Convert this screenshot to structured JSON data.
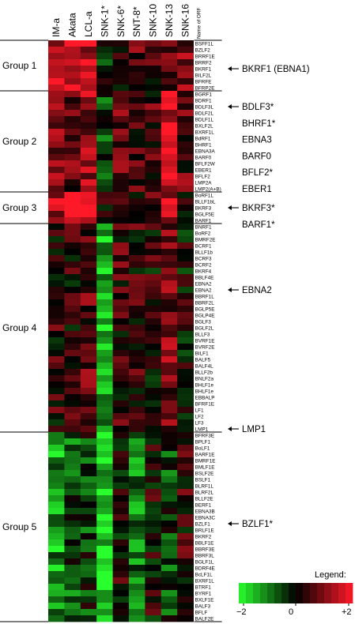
{
  "chart_data": {
    "type": "heatmap",
    "title": "",
    "columns": [
      "IM-a",
      "Akata",
      "LCL-a",
      "SNK-1*",
      "SNK-6*",
      "SNT-8*",
      "SNK-10",
      "SNK-13",
      "SNK-16"
    ],
    "row_header": "Name of ORF",
    "rows": [
      "BSFF1L",
      "BZLF2",
      "BRRF1E",
      "BRRF2",
      "BKRF1",
      "BILF2L",
      "BFRFE",
      "BFRP2E",
      "BGRF1",
      "BDRF1",
      "BDLF3L",
      "BDLF2L",
      "BDLF1L",
      "BXLF2L",
      "BXRF1L",
      "BdRF1",
      "BHRF1",
      "EBNA3A",
      "BARF0",
      "BFLF2W",
      "EBER1",
      "BFLF2",
      "LMP2A",
      "LMP2(A+B)",
      "BoRF1L",
      "BLLF1bL",
      "BKRF3",
      "BGLF5E",
      "BARF1",
      "BNRF1",
      "BoRF2",
      "BMRF2E",
      "BCRF1",
      "BLLF1b",
      "BCRF3",
      "BCRF2",
      "BKRF4",
      "BBLF4E",
      "EBNA2",
      "EBNA2",
      "BBRF1L",
      "BBRF2L",
      "BGLP5E",
      "BGLP4E",
      "BGLF3",
      "BGLF2L",
      "BLLF3",
      "BVRF1E",
      "BVRF2E",
      "BILF1",
      "BALF5",
      "BALF4L",
      "BLLF2b",
      "BNLF2a",
      "BHLF1e",
      "BHLF1e",
      "EBBALP",
      "BFRF1E",
      "LF1",
      "LF2",
      "LF3",
      "LMP1",
      "BFRF3E",
      "BPLF1",
      "BoLF1",
      "BARF1E",
      "BMRF1E",
      "BMLF1E",
      "BSLF2E",
      "BSLF1",
      "BLRF1L",
      "BLRF2L",
      "BLLF2E",
      "BERF1",
      "EBNA3B",
      "EBNA3C",
      "BZLF1",
      "BRLF1E",
      "BKRF2",
      "BBLF1E",
      "BBRF3E",
      "BBRF3L",
      "BGLF1L",
      "BDRF4E",
      "BcLF1L",
      "BXRF1L",
      "BTRF1",
      "BYRF1",
      "BXLF1E",
      "BALF3",
      "BFLF",
      "BALF2E"
    ],
    "groups": [
      {
        "name": "Group 1",
        "start": 0,
        "end": 7
      },
      {
        "name": "Group 2",
        "start": 8,
        "end": 23
      },
      {
        "name": "Group 3",
        "start": 24,
        "end": 28
      },
      {
        "name": "Group 4",
        "start": 29,
        "end": 61
      },
      {
        "name": "Group 5",
        "start": 62,
        "end": 91
      }
    ],
    "annotations": [
      {
        "text": "BKRF1 (EBNA1)",
        "row": 4,
        "arrow": true
      },
      {
        "text": "BDLF3*",
        "row": 10,
        "arrow": true
      },
      {
        "text": "BHRF1*",
        "row": 12.6,
        "arrow": false
      },
      {
        "text": "EBNA3",
        "row": 15.2,
        "arrow": false
      },
      {
        "text": "BARF0",
        "row": 17.8,
        "arrow": false
      },
      {
        "text": "BFLF2*",
        "row": 20.4,
        "arrow": false
      },
      {
        "text": "EBER1",
        "row": 23.0,
        "arrow": false
      },
      {
        "text": "BKRF3*",
        "row": 26,
        "arrow": true
      },
      {
        "text": "BARF1*",
        "row": 28.6,
        "arrow": false
      },
      {
        "text": "EBNA2",
        "row": 39,
        "arrow": true
      },
      {
        "text": "LMP1",
        "row": 61,
        "arrow": true
      },
      {
        "text": "BZLF1*",
        "row": 76,
        "arrow": true
      }
    ],
    "legend": {
      "title": "Legend:",
      "min": -2,
      "mid": 0,
      "max": 2,
      "tick_labels": [
        "−2",
        "0",
        "+2"
      ],
      "low_color": "#33ff33",
      "mid_color": "#000000",
      "high_color": "#ff3344"
    },
    "group_profiles": [
      [
        1.6,
        1.8,
        1.5,
        -0.3,
        0.4,
        0.6,
        0.3,
        0.8,
        0.9
      ],
      [
        0.8,
        0.7,
        1.1,
        -0.6,
        0.6,
        0.5,
        0.5,
        1.7,
        0.6
      ],
      [
        1.4,
        2.0,
        2.0,
        -0.1,
        0.5,
        0.3,
        0.6,
        1.3,
        0.3
      ],
      [
        0.3,
        0.2,
        0.7,
        -1.4,
        0.4,
        0.3,
        0.2,
        0.9,
        0.1
      ],
      [
        -1.2,
        -0.6,
        -0.4,
        -1.6,
        0.2,
        -0.9,
        0.1,
        -0.4,
        0.3
      ]
    ]
  }
}
